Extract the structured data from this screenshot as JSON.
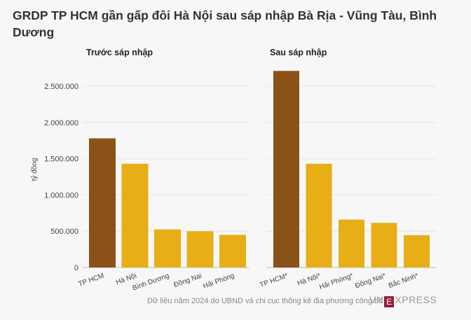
{
  "title": "GRDP TP HCM gần gấp đôi Hà Nội sau sáp nhập Bà Rịa - Vũng Tàu, Bình Dương",
  "source_note": "Dữ liệu năm 2024 do UBND và chi cục thống kê địa phương công bố",
  "logo": {
    "left": "VN",
    "mark": "E",
    "right": "XPRESS"
  },
  "colors": {
    "highlight": "#8b5217",
    "bar": "#e8ae16",
    "grid": "#e6e6e6",
    "axis": "#444444"
  },
  "chart_data": [
    {
      "type": "bar",
      "title": "Trước sáp nhập",
      "ylabel": "tỷ đồng",
      "ylim": [
        0,
        2750000
      ],
      "yticks": [
        0,
        500000,
        1000000,
        1500000,
        2000000,
        2500000
      ],
      "ytick_labels": [
        "0",
        "500.000",
        "1.000.000",
        "1.500.000",
        "2.000.000",
        "2.500.000"
      ],
      "categories": [
        "TP HCM",
        "Hà Nội",
        "Bình Dương",
        "Đồng Nai",
        "Hải Phòng"
      ],
      "values": [
        1780000,
        1430000,
        525000,
        500000,
        450000
      ],
      "highlight": [
        "TP HCM"
      ]
    },
    {
      "type": "bar",
      "title": "Sau sáp nhập",
      "ylim": [
        0,
        2750000
      ],
      "categories": [
        "TP HCM*",
        "Hà Nội*",
        "Hải Phòng*",
        "Đồng Nai*",
        "Bắc Ninh*"
      ],
      "values": [
        2710000,
        1430000,
        660000,
        615000,
        445000
      ],
      "highlight": [
        "TP HCM*"
      ]
    }
  ]
}
